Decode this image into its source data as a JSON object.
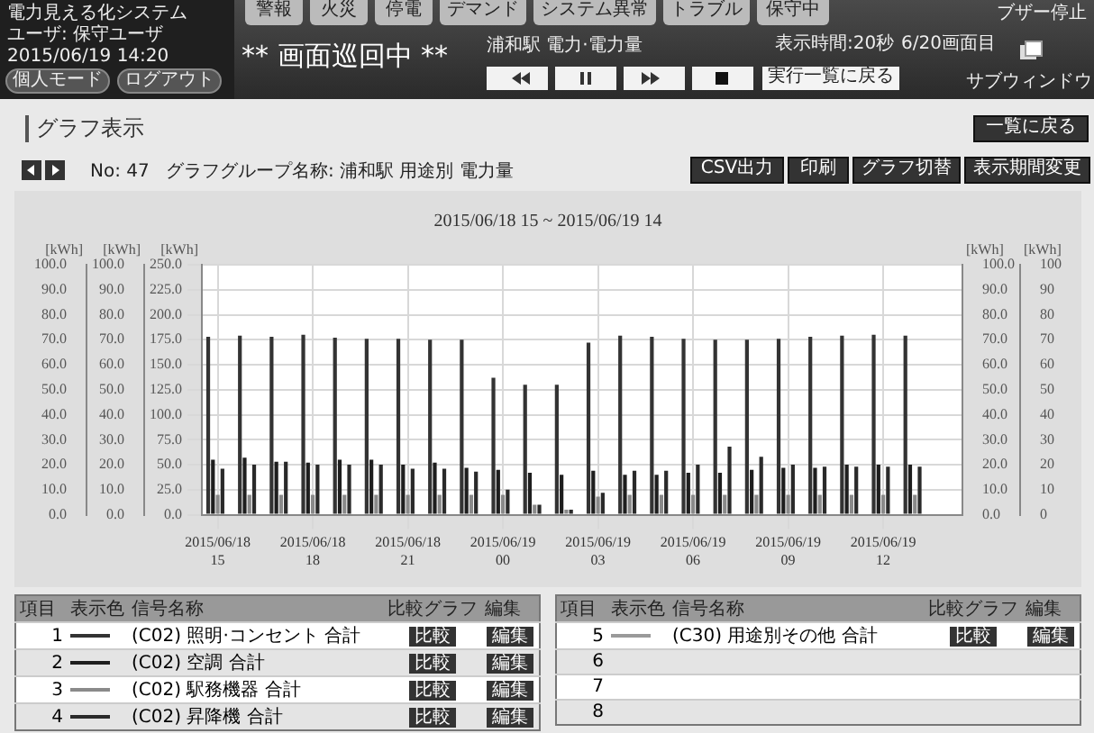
{
  "chart_data": {
    "type": "bar",
    "title": "2015/06/18 15 ~ 2015/06/19 14",
    "categories": [
      "2015/06/18 15",
      null,
      null,
      "2015/06/18 18",
      null,
      null,
      "2015/06/18 21",
      null,
      null,
      "2015/06/19 00",
      null,
      null,
      "2015/06/19 03",
      null,
      null,
      "2015/06/19 06",
      null,
      null,
      "2015/06/19 09",
      null,
      null,
      "2015/06/19 12",
      null,
      null
    ],
    "series": [
      {
        "name": "(C02) 照明·コンセント 合計",
        "color": "#333333",
        "values": [
          178,
          179,
          178,
          180,
          177,
          176,
          176,
          175,
          175,
          137,
          130,
          130,
          172,
          179,
          178,
          176,
          175,
          175,
          176,
          178,
          179,
          180,
          179,
          null
        ]
      },
      {
        "name": "(C02) 空調 合計",
        "color": "#1e1e1e",
        "values": [
          55,
          57,
          53,
          52,
          55,
          55,
          50,
          52,
          47,
          45,
          42,
          40,
          44,
          40,
          40,
          42,
          42,
          45,
          47,
          47,
          50,
          50,
          50,
          null
        ]
      },
      {
        "name": "(C02) 駅務機器 合計",
        "color": "#8a8a8a",
        "values": [
          20,
          20,
          20,
          20,
          20,
          20,
          20,
          20,
          20,
          20,
          10,
          5,
          18,
          20,
          20,
          20,
          20,
          20,
          20,
          20,
          20,
          20,
          20,
          null
        ]
      },
      {
        "name": "(C02) 昇降機 合計",
        "color": "#2a2a2a",
        "values": [
          46,
          50,
          53,
          50,
          50,
          50,
          46,
          46,
          43,
          25,
          10,
          5,
          22,
          44,
          44,
          50,
          68,
          58,
          50,
          48,
          48,
          48,
          48,
          null
        ]
      },
      {
        "name": "(C30) 用途別その他 合計",
        "color": "#9a9a9a",
        "values": [
          null,
          null,
          null,
          null,
          null,
          null,
          null,
          null,
          null,
          null,
          null,
          null,
          null,
          null,
          null,
          null,
          null,
          null,
          null,
          null,
          null,
          null,
          null,
          null
        ]
      }
    ],
    "ylabel": "[kWh]",
    "ylim": [
      0,
      250
    ],
    "yticks": [
      {
        "value": 0,
        "label": "0.0"
      },
      {
        "value": 25,
        "label": "25.0"
      },
      {
        "value": 50,
        "label": "50.0"
      },
      {
        "value": 75,
        "label": "75.0"
      },
      {
        "value": 100,
        "label": "100.0"
      },
      {
        "value": 125,
        "label": "125.0"
      },
      {
        "value": 150,
        "label": "150.0"
      },
      {
        "value": 175,
        "label": "175.0"
      },
      {
        "value": 200,
        "label": "200.0"
      },
      {
        "value": 225,
        "label": "225.0"
      },
      {
        "value": 250,
        "label": "250.0"
      }
    ],
    "y2label": "[kWh]",
    "y2lim": [
      0,
      100
    ],
    "y2ticks": [
      {
        "value": 0,
        "label": "0.0"
      },
      {
        "value": 10,
        "label": "10.0"
      },
      {
        "value": 20,
        "label": "20.0"
      },
      {
        "value": 30,
        "label": "30.0"
      },
      {
        "value": 40,
        "label": "40.0"
      },
      {
        "value": 50,
        "label": "50.0"
      },
      {
        "value": 60,
        "label": "60.0"
      },
      {
        "value": 70,
        "label": "70.0"
      },
      {
        "value": 80,
        "label": "80.0"
      },
      {
        "value": 90,
        "label": "90.0"
      },
      {
        "value": 100,
        "label": "100.0"
      }
    ],
    "y3label": "[kWh]",
    "y3lim": [
      0,
      100
    ],
    "y3ticks": [
      0,
      10,
      20,
      30,
      40,
      50,
      60,
      70,
      80,
      90,
      100
    ],
    "grid": true,
    "legend": "bottom",
    "annotations": [
      "電力見える化システム",
      "ユーザ: 保守ユーザ",
      "2015/06/19 14:20",
      "個人モード",
      "ログアウト",
      "警報",
      "火災",
      "停電",
      "デマンド",
      "システム異常",
      "トラブル",
      "保守中",
      "** 画面巡回中 **",
      "浦和駅 電力·電力量",
      "実行一覧に戻る",
      "表示時間:20秒",
      "6/20画面目",
      "ブザー停止",
      "サブウィンドウ",
      "グラフ表示",
      "一覧に戻る",
      "No: 47",
      "グラフグループ名称: 浦和駅 用途別 電力量",
      "CSV出力",
      "印刷",
      "グラフ切替",
      "表示期間変更",
      "項目",
      "表示色",
      "信号名称",
      "比較グラフ",
      "編集",
      "比較",
      "編集",
      "1",
      "2",
      "3",
      "4",
      "5",
      "6",
      "7",
      "8"
    ]
  }
}
